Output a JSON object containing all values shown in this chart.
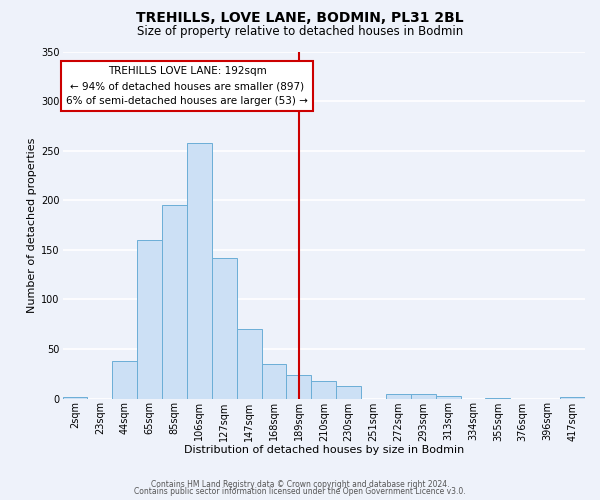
{
  "title": "TREHILLS, LOVE LANE, BODMIN, PL31 2BL",
  "subtitle": "Size of property relative to detached houses in Bodmin",
  "xlabel": "Distribution of detached houses by size in Bodmin",
  "ylabel": "Number of detached properties",
  "bin_labels": [
    "2sqm",
    "23sqm",
    "44sqm",
    "65sqm",
    "85sqm",
    "106sqm",
    "127sqm",
    "147sqm",
    "168sqm",
    "189sqm",
    "210sqm",
    "230sqm",
    "251sqm",
    "272sqm",
    "293sqm",
    "313sqm",
    "334sqm",
    "355sqm",
    "376sqm",
    "396sqm",
    "417sqm"
  ],
  "bar_values": [
    2,
    0,
    38,
    160,
    195,
    258,
    142,
    70,
    35,
    24,
    18,
    13,
    0,
    5,
    5,
    3,
    0,
    1,
    0,
    0,
    2
  ],
  "bar_color": "#cce0f5",
  "bar_edge_color": "#6baed6",
  "vline_x_idx": 9,
  "vline_color": "#cc0000",
  "ylim": [
    0,
    350
  ],
  "yticks": [
    0,
    50,
    100,
    150,
    200,
    250,
    300,
    350
  ],
  "annotation_title": "TREHILLS LOVE LANE: 192sqm",
  "annotation_line1": "← 94% of detached houses are smaller (897)",
  "annotation_line2": "6% of semi-detached houses are larger (53) →",
  "annotation_box_color": "#ffffff",
  "annotation_box_edge": "#cc0000",
  "footer_line1": "Contains HM Land Registry data © Crown copyright and database right 2024.",
  "footer_line2": "Contains public sector information licensed under the Open Government Licence v3.0.",
  "background_color": "#eef2fa",
  "grid_color": "#ffffff",
  "title_fontsize": 10,
  "subtitle_fontsize": 8.5,
  "axis_label_fontsize": 8,
  "tick_fontsize": 7,
  "annotation_fontsize": 7.5,
  "footer_fontsize": 5.5
}
